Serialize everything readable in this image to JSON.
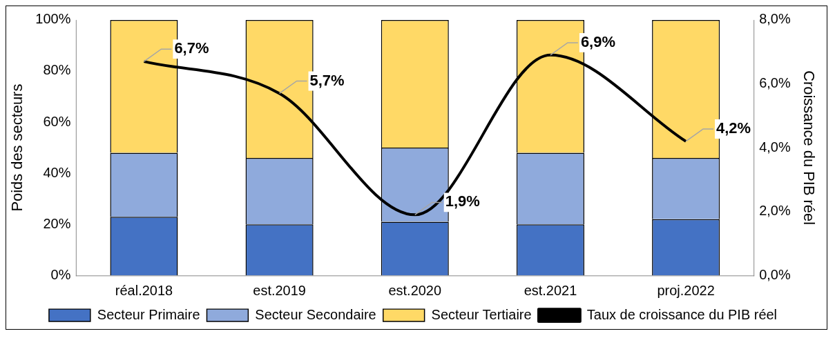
{
  "chart_data": {
    "type": "bar",
    "stacked": true,
    "categories": [
      "réal.2018",
      "est.2019",
      "est.2020",
      "est.2021",
      "proj.2022"
    ],
    "ylabel": "Poids des secteurs",
    "y2label": "Croissance du PIB réel",
    "ylim": [
      0,
      100
    ],
    "yticks": [
      {
        "value": 0,
        "label": "0%"
      },
      {
        "value": 20,
        "label": "20%"
      },
      {
        "value": 40,
        "label": "40%"
      },
      {
        "value": 60,
        "label": "60%"
      },
      {
        "value": 80,
        "label": "80%"
      },
      {
        "value": 100,
        "label": "100%"
      }
    ],
    "y2lim": [
      0,
      8
    ],
    "y2ticks": [
      {
        "value": 0,
        "label": "0,0%"
      },
      {
        "value": 2,
        "label": "2,0%"
      },
      {
        "value": 4,
        "label": "4,0%"
      },
      {
        "value": 6,
        "label": "6,0%"
      },
      {
        "value": 8,
        "label": "8,0%"
      }
    ],
    "series": [
      {
        "name": "Secteur Primaire",
        "color": "#4472c4",
        "values": [
          23,
          20,
          21,
          20,
          22
        ]
      },
      {
        "name": "Secteur Secondaire",
        "color": "#8faadc",
        "values": [
          25,
          26,
          29,
          28,
          24
        ]
      },
      {
        "name": "Secteur Tertiaire",
        "color": "#ffd966",
        "values": [
          52,
          54,
          50,
          52,
          54
        ]
      },
      {
        "name": "Taux de croissance du PIB réel",
        "type": "line",
        "axis": "y2",
        "color": "#000000",
        "values": [
          6.7,
          5.7,
          1.9,
          6.9,
          4.2
        ],
        "value_labels": [
          "6,7%",
          "5,7%",
          "1,9%",
          "6,9%",
          "4,2%"
        ]
      }
    ],
    "legend": "bottom",
    "grid": false
  }
}
